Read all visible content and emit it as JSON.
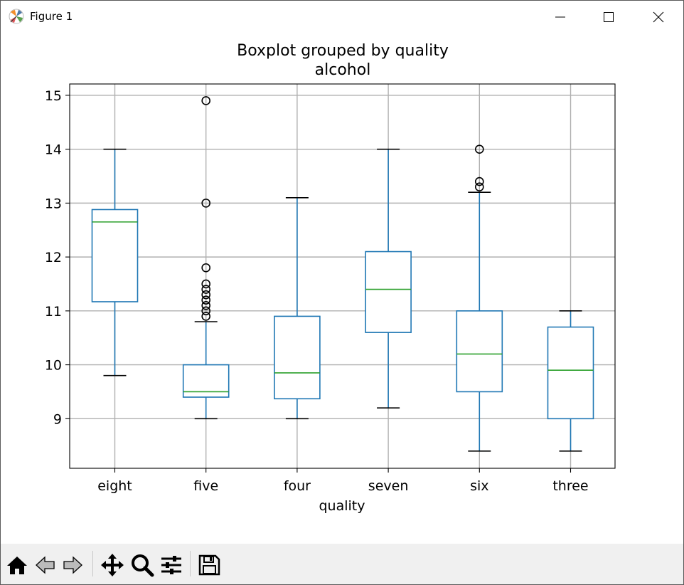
{
  "window": {
    "title": "Figure 1",
    "controls": {
      "minimize": "minimize",
      "maximize": "maximize",
      "close": "close"
    }
  },
  "toolbar": {
    "tools": [
      {
        "id": "home",
        "icon": "home-icon"
      },
      {
        "id": "back",
        "icon": "back-arrow-icon"
      },
      {
        "id": "forward",
        "icon": "forward-arrow-icon"
      },
      {
        "id": "pan",
        "icon": "pan-move-icon"
      },
      {
        "id": "zoom",
        "icon": "zoom-magnifier-icon"
      },
      {
        "id": "configure",
        "icon": "configure-subplots-icon"
      },
      {
        "id": "save",
        "icon": "save-disk-icon"
      }
    ]
  },
  "chart_data": {
    "type": "boxplot",
    "title": "Boxplot grouped by quality",
    "subtitle": "alcohol",
    "xlabel": "quality",
    "ylabel": "",
    "ylim": [
      8.08,
      15.21
    ],
    "yticks": [
      9,
      10,
      11,
      12,
      13,
      14,
      15
    ],
    "grid": true,
    "colors": {
      "box": "#1f77b4",
      "median": "#2ca02c",
      "whisker": "#1f77b4",
      "cap": "#000000",
      "flier": "#000000",
      "grid": "#b0b0b0"
    },
    "categories": [
      "eight",
      "five",
      "four",
      "seven",
      "six",
      "three"
    ],
    "boxes": [
      {
        "q1": 11.17,
        "median": 12.65,
        "q3": 12.88,
        "whisker_low": 9.8,
        "whisker_high": 14.0,
        "fliers": []
      },
      {
        "q1": 9.4,
        "median": 9.5,
        "q3": 10.0,
        "whisker_low": 9.0,
        "whisker_high": 10.8,
        "fliers": [
          10.9,
          11.0,
          11.1,
          11.2,
          11.3,
          11.4,
          11.5,
          11.8,
          13.0,
          14.9
        ]
      },
      {
        "q1": 9.37,
        "median": 9.85,
        "q3": 10.9,
        "whisker_low": 9.0,
        "whisker_high": 13.1,
        "fliers": []
      },
      {
        "q1": 10.6,
        "median": 11.4,
        "q3": 12.1,
        "whisker_low": 9.2,
        "whisker_high": 14.0,
        "fliers": []
      },
      {
        "q1": 9.5,
        "median": 10.2,
        "q3": 11.0,
        "whisker_low": 8.4,
        "whisker_high": 13.2,
        "fliers": [
          13.3,
          13.4,
          14.0
        ]
      },
      {
        "q1": 9.0,
        "median": 9.9,
        "q3": 10.7,
        "whisker_low": 8.4,
        "whisker_high": 11.0,
        "fliers": []
      }
    ]
  }
}
